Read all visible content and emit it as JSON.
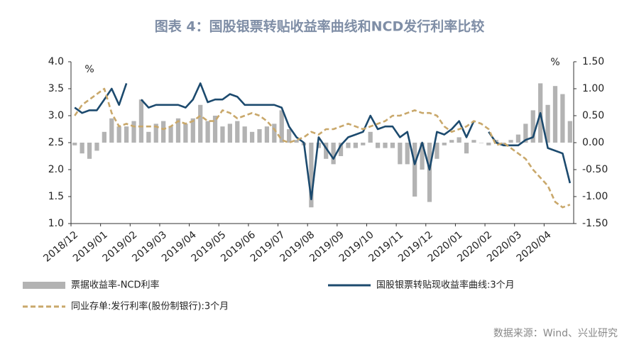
{
  "chart_data": {
    "type": "line",
    "title": "图表 4：国股银票转贴收益率曲线和NCD发行利率比较",
    "y_unit": "%",
    "y2_unit": "%",
    "source": "数据来源：Wind、兴业研究",
    "categories": [
      "2018/12",
      null,
      null,
      null,
      "2019/01",
      null,
      null,
      null,
      "2019/02",
      null,
      null,
      null,
      "2019/03",
      null,
      null,
      null,
      "2019/04",
      null,
      null,
      null,
      "2019/05",
      null,
      null,
      null,
      "2019/06",
      null,
      null,
      null,
      "2019/07",
      null,
      null,
      null,
      "2019/08",
      null,
      null,
      null,
      "2019/09",
      null,
      null,
      null,
      "2019/10",
      null,
      null,
      null,
      "2019/11",
      null,
      null,
      null,
      "2019/12",
      null,
      null,
      null,
      "2020/01",
      null,
      null,
      null,
      "2020/02",
      null,
      null,
      null,
      "2020/03",
      null,
      null,
      null,
      "2020/04",
      null,
      null,
      null
    ],
    "series": [
      {
        "name": "票据收益率-NCD利率",
        "type": "bar",
        "axis": "y2",
        "color": "#b3b3b3",
        "values": [
          -0.05,
          -0.2,
          -0.3,
          -0.15,
          0.2,
          0.45,
          0.3,
          0.3,
          0.4,
          0.8,
          0.2,
          0.35,
          0.4,
          0.3,
          0.45,
          0.35,
          0.45,
          0.7,
          0.4,
          0.5,
          0.3,
          0.35,
          0.4,
          0.3,
          0.2,
          0.25,
          0.3,
          0.35,
          0.6,
          0.25,
          0.05,
          -0.05,
          -1.2,
          -0.1,
          -0.3,
          -0.4,
          -0.25,
          -0.1,
          -0.1,
          -0.05,
          0.2,
          -0.1,
          -0.1,
          -0.1,
          -0.4,
          -0.4,
          -1.0,
          -0.5,
          -1.1,
          -0.3,
          -0.05,
          0.05,
          0.1,
          -0.2,
          0.05,
          0.0,
          -0.05,
          0.05,
          -0.05,
          0.05,
          0.15,
          0.35,
          0.6,
          1.1,
          0.7,
          1.05,
          0.9,
          0.4
        ]
      },
      {
        "name": "国股银票转贴现收益率曲线:3个月",
        "type": "line",
        "color": "#1c4a6e",
        "values": [
          3.15,
          3.05,
          3.1,
          3.1,
          3.3,
          3.5,
          3.2,
          3.6,
          null,
          3.3,
          3.15,
          3.2,
          3.2,
          3.2,
          3.2,
          3.15,
          3.3,
          3.6,
          3.25,
          3.3,
          3.3,
          3.4,
          3.35,
          3.2,
          3.2,
          3.2,
          3.2,
          3.2,
          3.15,
          2.8,
          2.6,
          2.5,
          1.45,
          2.6,
          2.4,
          2.2,
          2.45,
          2.6,
          2.65,
          2.7,
          3.0,
          2.75,
          2.8,
          2.8,
          2.6,
          2.7,
          2.1,
          2.5,
          2.0,
          2.7,
          2.65,
          2.75,
          2.9,
          2.6,
          2.9,
          null,
          2.7,
          2.5,
          2.45,
          2.45,
          2.45,
          2.55,
          2.6,
          3.05,
          2.4,
          2.35,
          2.3,
          1.75
        ]
      },
      {
        "name": "同业存单:发行利率(股份制银行):3个月",
        "type": "dashed",
        "color": "#c9a86b",
        "values": [
          3.0,
          3.2,
          3.3,
          3.4,
          3.5,
          3.05,
          2.8,
          2.85,
          2.8,
          2.8,
          2.8,
          2.8,
          2.75,
          2.8,
          2.9,
          2.85,
          2.9,
          3.0,
          2.9,
          2.9,
          3.1,
          3.05,
          2.95,
          3.0,
          3.05,
          3.0,
          2.9,
          2.75,
          2.55,
          2.5,
          2.55,
          2.6,
          2.7,
          2.65,
          2.75,
          2.75,
          2.8,
          2.85,
          2.8,
          2.75,
          2.8,
          2.85,
          2.9,
          3.0,
          3.0,
          3.05,
          3.1,
          3.05,
          3.05,
          3.0,
          2.8,
          2.7,
          2.75,
          2.8,
          2.9,
          2.85,
          2.75,
          2.45,
          2.5,
          2.4,
          2.3,
          2.2,
          2.0,
          1.85,
          1.7,
          1.4,
          1.3,
          1.35
        ]
      }
    ],
    "ylim": [
      1.0,
      4.0
    ],
    "yticks": [
      {
        "value": 4.0,
        "label": "4.0"
      },
      {
        "value": 3.5,
        "label": "3.5"
      },
      {
        "value": 3.0,
        "label": "3.0"
      },
      {
        "value": 2.5,
        "label": "2.5"
      },
      {
        "value": 2.0,
        "label": "2.0"
      },
      {
        "value": 1.5,
        "label": "1.5"
      },
      {
        "value": 1.0,
        "label": "1.0"
      }
    ],
    "y2lim": [
      -1.5,
      1.5
    ],
    "y2ticks": [
      {
        "value": 1.5,
        "label": "1.50"
      },
      {
        "value": 1.0,
        "label": "1.00"
      },
      {
        "value": 0.5,
        "label": "0.50"
      },
      {
        "value": 0,
        "label": "0.00"
      },
      {
        "value": -0.5,
        "label": "-0.50"
      },
      {
        "value": -1.0,
        "label": "-1.00"
      },
      {
        "value": -1.5,
        "label": "-1.50"
      }
    ]
  }
}
